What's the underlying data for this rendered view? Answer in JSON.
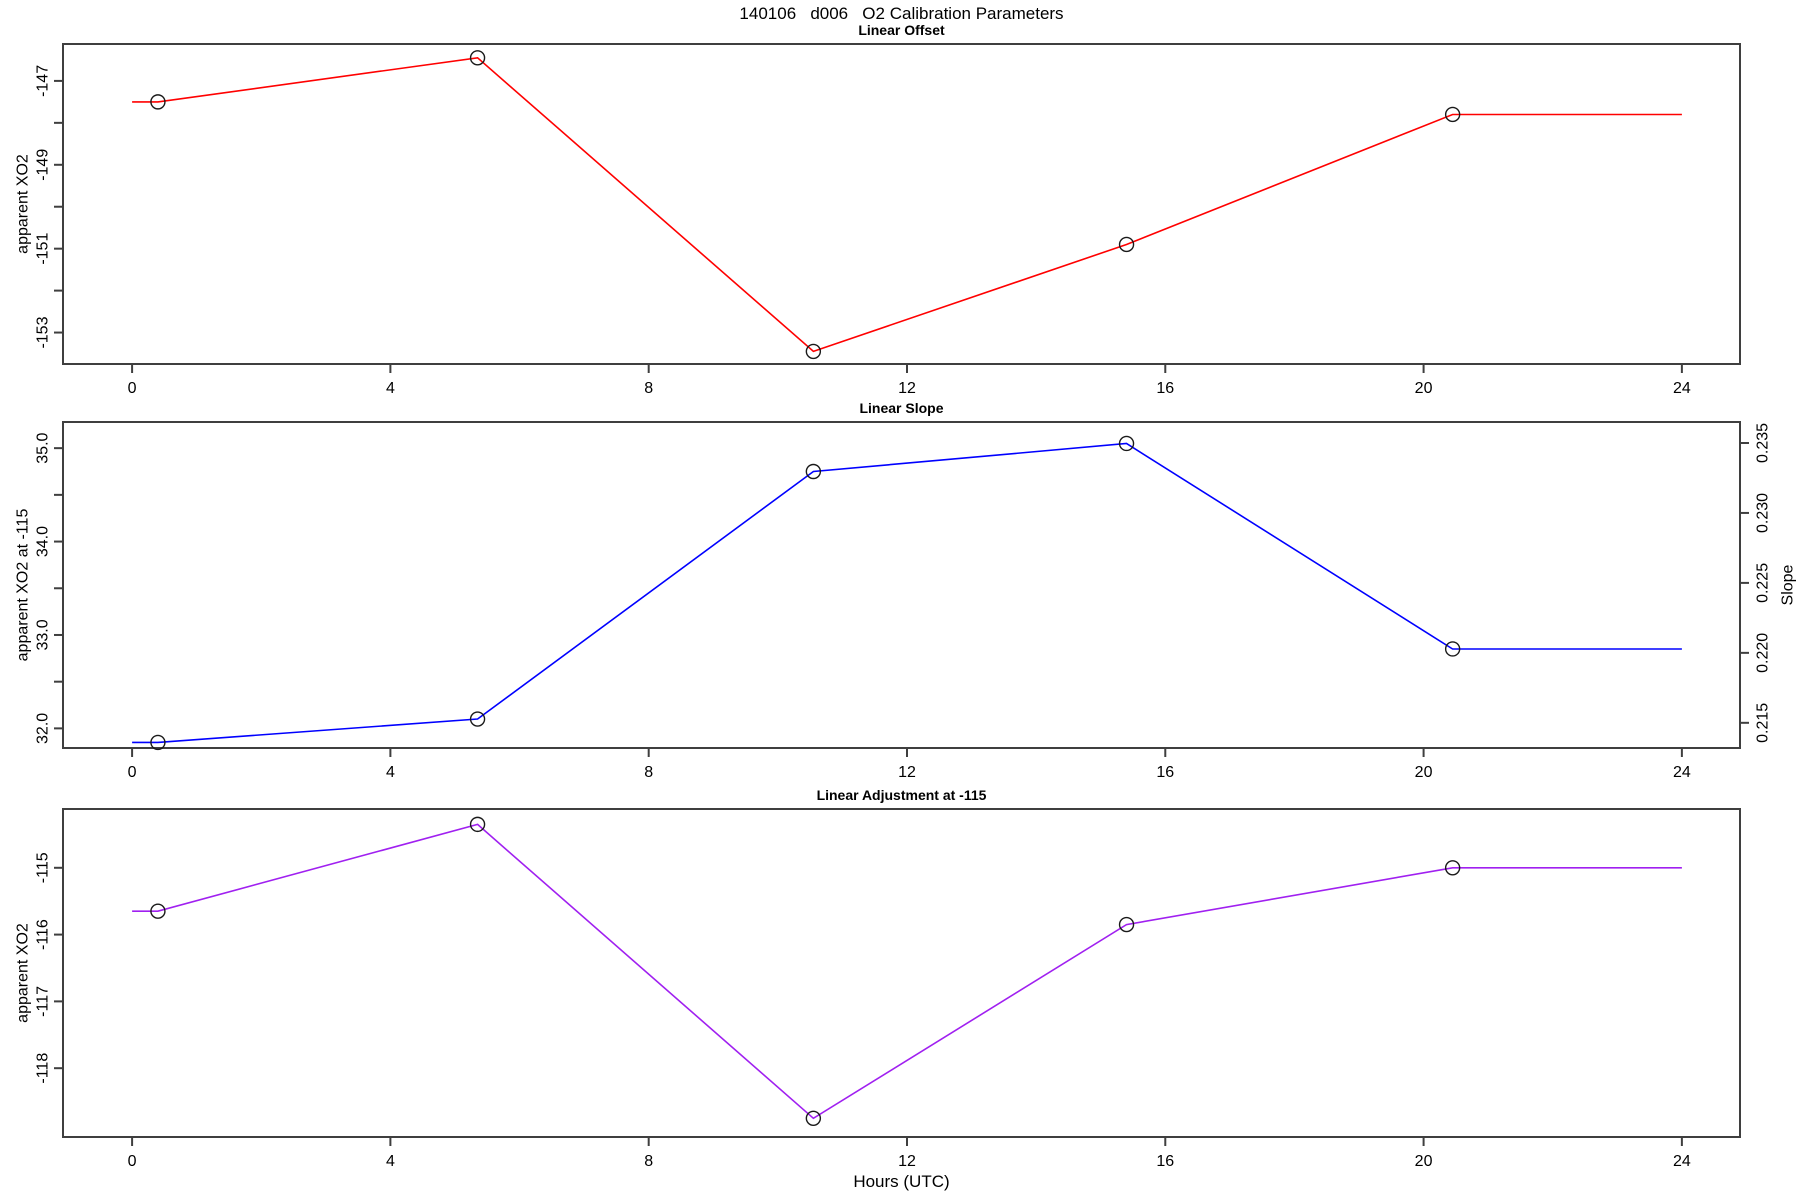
{
  "header": {
    "title": "140106   d006   O2 Calibration Parameters"
  },
  "x_axis": {
    "label": "Hours (UTC)",
    "xlim": [
      -1.07,
      24.9
    ],
    "ticks": [
      {
        "v": 0,
        "label": "0"
      },
      {
        "v": 4,
        "label": "4"
      },
      {
        "v": 8,
        "label": "8"
      },
      {
        "v": 12,
        "label": "12"
      },
      {
        "v": 16,
        "label": "16"
      },
      {
        "v": 20,
        "label": "20"
      },
      {
        "v": 24,
        "label": "24"
      }
    ]
  },
  "chart_data": [
    {
      "type": "line",
      "title": "Linear Offset",
      "ylabel": "apparent XO2",
      "color": "#ff0000",
      "marker": "open-circle",
      "x": [
        0.4,
        5.35,
        10.55,
        15.4,
        20.45
      ],
      "y": [
        -147.5,
        -146.45,
        -153.45,
        -150.9,
        -147.8
      ],
      "line_extends_x": [
        0,
        24
      ],
      "ylim": [
        -153.75,
        -146.12
      ],
      "yticks": [
        {
          "v": -153,
          "label": "-153"
        },
        {
          "v": -152,
          "label": ""
        },
        {
          "v": -151,
          "label": "-151"
        },
        {
          "v": -150,
          "label": ""
        },
        {
          "v": -149,
          "label": "-149"
        },
        {
          "v": -148,
          "label": ""
        },
        {
          "v": -147,
          "label": "-147"
        }
      ]
    },
    {
      "type": "line",
      "title": "Linear Slope",
      "ylabel": "apparent XO2 at -115",
      "color": "#0000ff",
      "marker": "open-circle",
      "x": [
        0.4,
        5.35,
        10.55,
        15.4,
        20.45
      ],
      "y": [
        31.85,
        32.1,
        34.75,
        35.05,
        32.85
      ],
      "y_slope_scale": [
        0.2132,
        0.2149,
        0.2329,
        0.2349,
        0.22
      ],
      "line_extends_x": [
        0,
        24
      ],
      "ylim": [
        31.79,
        35.28
      ],
      "yticks": [
        {
          "v": 32,
          "label": "32.0"
        },
        {
          "v": 32.5,
          "label": ""
        },
        {
          "v": 33,
          "label": "33.0"
        },
        {
          "v": 33.5,
          "label": ""
        },
        {
          "v": 34,
          "label": "34.0"
        },
        {
          "v": 34.5,
          "label": ""
        },
        {
          "v": 35,
          "label": "35.0"
        }
      ],
      "right_axis": {
        "label": "Slope",
        "ylim": [
          0.2132,
          0.2365
        ],
        "ticks": [
          {
            "v": 0.215,
            "label": "0.215"
          },
          {
            "v": 0.22,
            "label": "0.220"
          },
          {
            "v": 0.225,
            "label": "0.225"
          },
          {
            "v": 0.23,
            "label": "0.230"
          },
          {
            "v": 0.235,
            "label": "0.235"
          }
        ]
      }
    },
    {
      "type": "line",
      "title": "Linear Adjustment at -115",
      "ylabel": "apparent XO2",
      "color": "#a020f0",
      "marker": "open-circle",
      "x": [
        0.4,
        5.35,
        10.55,
        15.4,
        20.45
      ],
      "y": [
        -115.65,
        -114.35,
        -118.75,
        -115.85,
        -115.0
      ],
      "line_extends_x": [
        0,
        24
      ],
      "ylim": [
        -119.03,
        -114.12
      ],
      "yticks": [
        {
          "v": -118,
          "label": "-118"
        },
        {
          "v": -117,
          "label": "-117"
        },
        {
          "v": -116,
          "label": "-116"
        },
        {
          "v": -115,
          "label": "-115"
        }
      ]
    }
  ]
}
